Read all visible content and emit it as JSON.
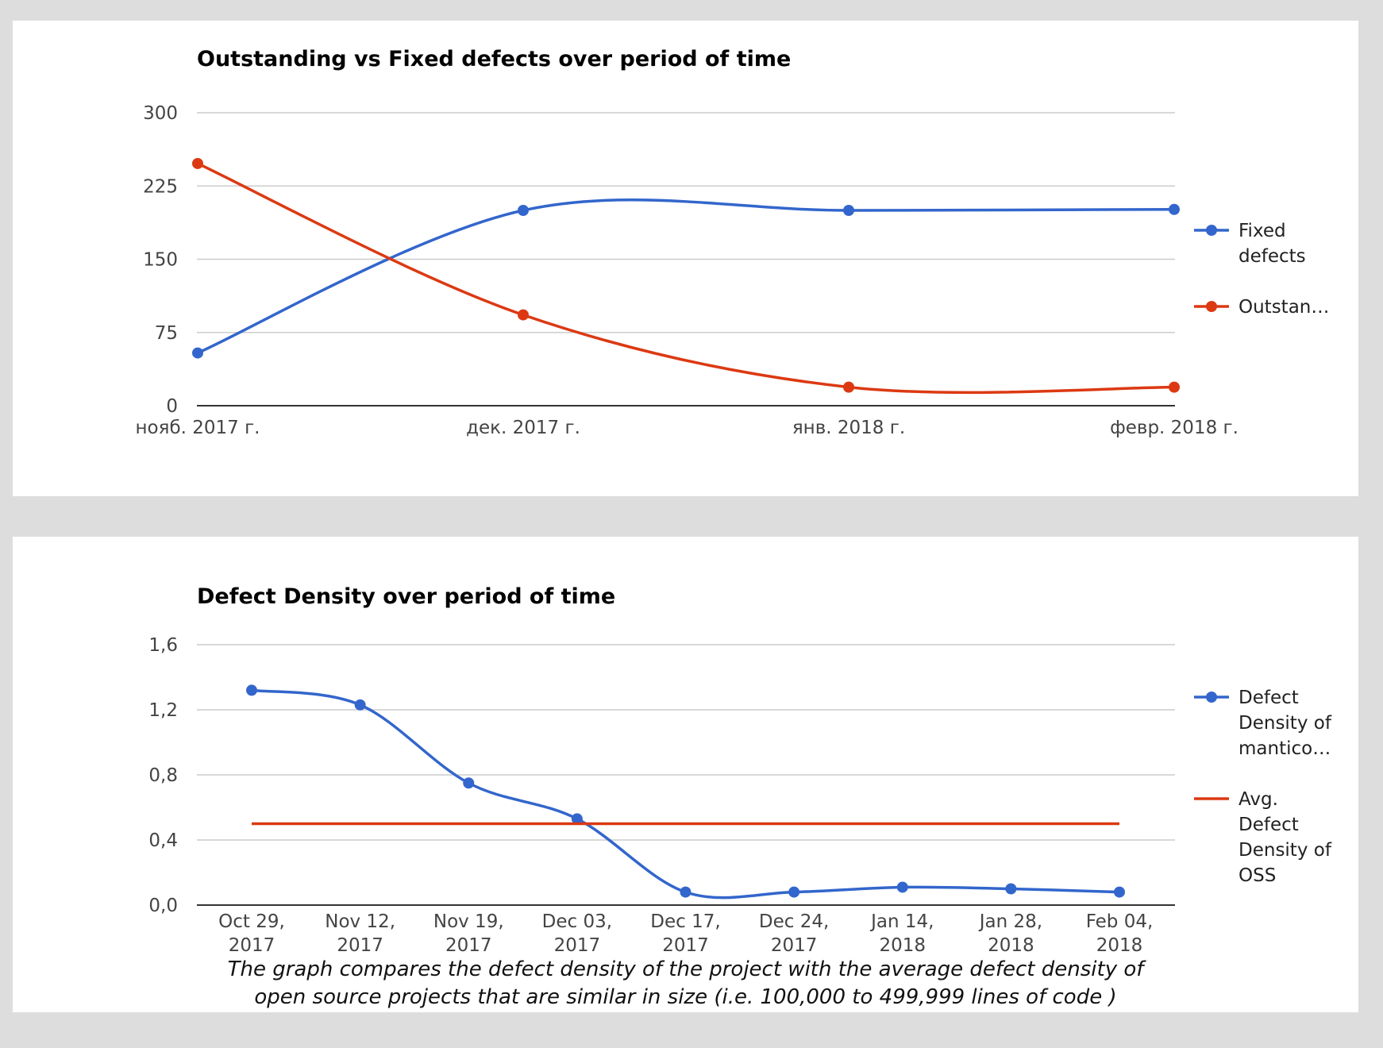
{
  "colors": {
    "blue": "#3366cc",
    "red": "#dc3912",
    "grid": "#cccccc",
    "axis": "#333333"
  },
  "chart_data": [
    {
      "type": "line",
      "title": "Outstanding vs Fixed defects over period of time",
      "categories": [
        "нояб. 2017 г.",
        "дек. 2017 г.",
        "янв. 2018 г.",
        "февр. 2018 г."
      ],
      "yticks": [
        "300",
        "225",
        "150",
        "75",
        "0"
      ],
      "ylim": [
        0,
        300
      ],
      "grid": true,
      "legend_position": "right",
      "series": [
        {
          "name": "Fixed defects",
          "legend_lines": [
            "Fixed",
            "defects"
          ],
          "color": "#3366cc",
          "values": [
            54,
            200,
            200,
            201
          ],
          "smooth": true
        },
        {
          "name": "Outstan…",
          "legend_lines": [
            "Outstan…"
          ],
          "color": "#dc3912",
          "values": [
            248,
            93,
            19,
            19
          ],
          "smooth": true
        }
      ]
    },
    {
      "type": "line",
      "title": "Defect Density over period of time",
      "categories": [
        [
          "Oct 29,",
          "2017"
        ],
        [
          "Nov 12,",
          "2017"
        ],
        [
          "Nov 19,",
          "2017"
        ],
        [
          "Dec 03,",
          "2017"
        ],
        [
          "Dec 17,",
          "2017"
        ],
        [
          "Dec 24,",
          "2017"
        ],
        [
          "Jan 14,",
          "2018"
        ],
        [
          "Jan 28,",
          "2018"
        ],
        [
          "Feb 04,",
          "2018"
        ]
      ],
      "yticks": [
        "1,6",
        "1,2",
        "0,8",
        "0,4",
        "0,0"
      ],
      "ylim": [
        0,
        1.6
      ],
      "grid": true,
      "legend_position": "right",
      "series": [
        {
          "name": "Defect Density of mantico…",
          "legend_lines": [
            "Defect",
            "Density of",
            "mantico…"
          ],
          "color": "#3366cc",
          "values": [
            1.32,
            1.23,
            0.75,
            0.53,
            0.08,
            0.08,
            0.11,
            0.1,
            0.08
          ],
          "smooth": true
        },
        {
          "name": "Avg. Defect Density of OSS",
          "legend_lines": [
            "Avg.",
            "Defect",
            "Density of",
            "OSS"
          ],
          "color": "#dc3912",
          "values": [
            0.5,
            0.5,
            0.5,
            0.5,
            0.5,
            0.5,
            0.5,
            0.5,
            0.5
          ],
          "smooth": false,
          "markers": false
        }
      ],
      "caption_lines": [
        "The graph compares the defect density of the project with the average defect density of",
        "open source projects that are similar in size (i.e. 100,000 to 499,999 lines of code )"
      ]
    }
  ]
}
